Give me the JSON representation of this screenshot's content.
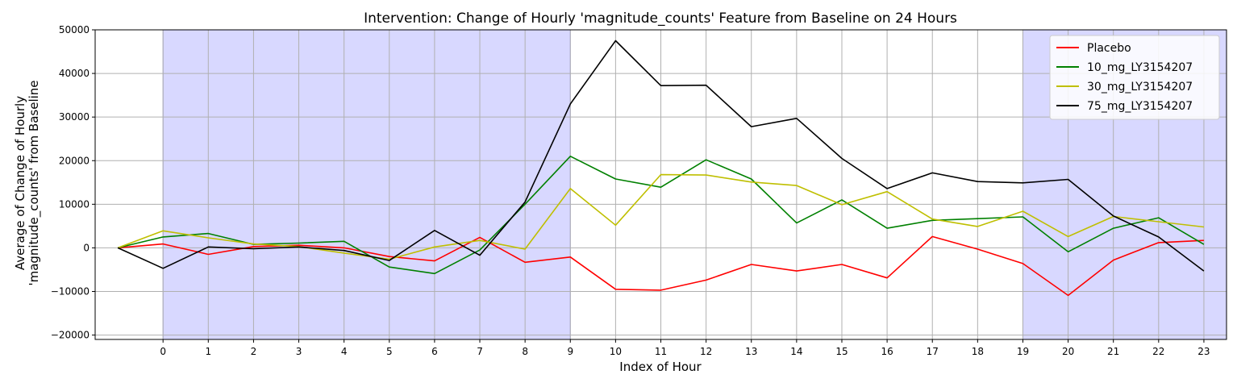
{
  "chart_data": {
    "type": "line",
    "title": "Intervention: Change of Hourly 'magnitude_counts' Feature from Baseline on 24 Hours",
    "xlabel": "Index of Hour",
    "ylabel_line1": "Average of Change of Hourly",
    "ylabel_line2": "'magnitude_counts' from Baseline",
    "x": [
      -1,
      0,
      1,
      2,
      3,
      4,
      5,
      6,
      7,
      8,
      9,
      10,
      11,
      12,
      13,
      14,
      15,
      16,
      17,
      18,
      19,
      20,
      21,
      22,
      23
    ],
    "x_tick_labels": [
      "0",
      "1",
      "2",
      "3",
      "4",
      "5",
      "6",
      "7",
      "8",
      "9",
      "10",
      "11",
      "12",
      "13",
      "14",
      "15",
      "16",
      "17",
      "18",
      "19",
      "20",
      "21",
      "22",
      "23"
    ],
    "y_ticks": [
      -20000,
      -10000,
      0,
      10000,
      20000,
      30000,
      40000,
      50000
    ],
    "y_tick_labels": [
      "−20000",
      "−10000",
      "0",
      "10000",
      "20000",
      "30000",
      "40000",
      "50000"
    ],
    "xlim": [
      -1.5,
      23.5
    ],
    "ylim": [
      -21000,
      50000
    ],
    "grid": true,
    "legend_position": "top-right",
    "shaded_ranges": [
      [
        0,
        9
      ],
      [
        19,
        23.5
      ]
    ],
    "shade_color": "#d8d8ff",
    "series": [
      {
        "name": "Placebo",
        "color": "#ff0000",
        "values": [
          0,
          900,
          -1500,
          300,
          600,
          0,
          -2000,
          -3000,
          2400,
          -3300,
          -2100,
          -9500,
          -9700,
          -7400,
          -3800,
          -5300,
          -3800,
          -6900,
          2600,
          -300,
          -3600,
          -10900,
          -2800,
          1200,
          1700
        ]
      },
      {
        "name": "10_mg_LY3154207",
        "color": "#008000",
        "values": [
          0,
          2500,
          3300,
          800,
          1100,
          1500,
          -4400,
          -5900,
          -500,
          10000,
          21000,
          15800,
          13900,
          20200,
          15800,
          5700,
          11000,
          4500,
          6300,
          6700,
          7100,
          -900,
          4500,
          6900,
          800
        ]
      },
      {
        "name": "30_mg_LY3154207",
        "color": "#bfbf00",
        "values": [
          0,
          3900,
          2300,
          900,
          300,
          -1200,
          -2600,
          200,
          1700,
          -300,
          13600,
          5200,
          16800,
          16700,
          15100,
          14300,
          9900,
          12900,
          6600,
          4900,
          8400,
          2600,
          7200,
          6000,
          4800
        ]
      },
      {
        "name": "75_mg_LY3154207",
        "color": "#000000",
        "values": [
          0,
          -4700,
          200,
          -200,
          200,
          -600,
          -2900,
          4000,
          -1700,
          10500,
          33000,
          47500,
          37200,
          37300,
          27800,
          29700,
          20500,
          13600,
          17200,
          15200,
          14900,
          15700,
          7300,
          2500,
          -5300
        ]
      }
    ]
  }
}
